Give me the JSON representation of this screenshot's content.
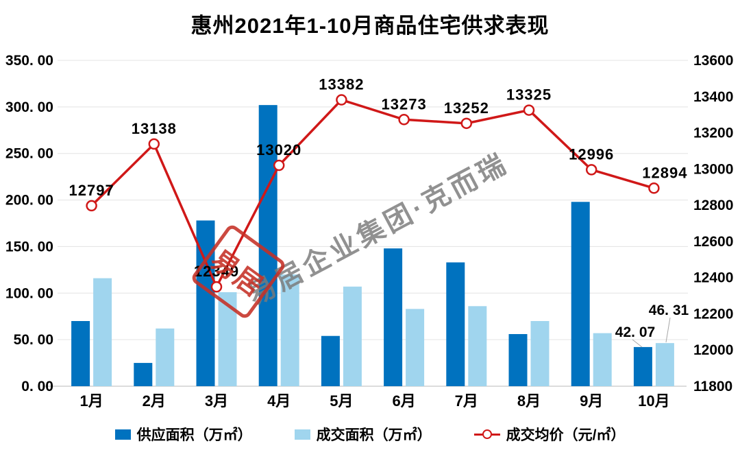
{
  "title": "惠州2021年1-10月商品住宅供求表现",
  "watermark": {
    "diagonal_text": "易居企业集团·克而瑞",
    "stamp_text": "易居"
  },
  "colors": {
    "supply_bar": "#0072bf",
    "deal_bar": "#a0d5ee",
    "price_line": "#d01818",
    "grid_line": "#e3e3e3",
    "axis_line": "#c8c8c8",
    "text": "#000000",
    "leader_line": "#a6a6a6",
    "watermark_gray": "#7a7a7a",
    "stamp_red": "#c63026"
  },
  "chart_data": {
    "type": "bar",
    "subtype": "bar+line combo, dual axis",
    "title": "惠州2021年1-10月商品住宅供求表现",
    "categories": [
      "1月",
      "2月",
      "3月",
      "4月",
      "5月",
      "6月",
      "7月",
      "8月",
      "9月",
      "10月"
    ],
    "series": [
      {
        "name": "供应面积（万㎡）",
        "type": "bar",
        "axis": "left",
        "color": "#0072bf",
        "values": [
          70,
          25,
          178,
          302,
          54,
          148,
          133,
          56,
          198,
          42.07
        ]
      },
      {
        "name": "成交面积（万㎡）",
        "type": "bar",
        "axis": "left",
        "color": "#a0d5ee",
        "values": [
          116,
          62,
          101,
          120,
          107,
          83,
          86,
          70,
          57,
          46.31
        ]
      },
      {
        "name": "成交均价（元/㎡）",
        "type": "line",
        "axis": "right",
        "color": "#d01818",
        "marker": "open-circle",
        "values": [
          12797,
          13138,
          12349,
          13020,
          13382,
          13273,
          13252,
          13325,
          12996,
          12894
        ],
        "point_labels": [
          "12797",
          "13138",
          "12349",
          "13020",
          "13382",
          "13273",
          "13252",
          "13325",
          "12996",
          "12894"
        ]
      }
    ],
    "left_axis": {
      "min": 0,
      "max": 350,
      "step": 50,
      "ticks": [
        "350. 00",
        "300. 00",
        "250. 00",
        "200. 00",
        "150. 00",
        "100. 00",
        "50. 00",
        "0. 00"
      ]
    },
    "right_axis": {
      "min": 11800,
      "max": 13600,
      "step": 200,
      "ticks": [
        "13600",
        "13400",
        "13200",
        "13000",
        "12800",
        "12600",
        "12400",
        "12200",
        "12000",
        "11800"
      ]
    },
    "bar_annotations": [
      {
        "series": "供应面积（万㎡）",
        "category": "10月",
        "label": "42. 07"
      },
      {
        "series": "成交面积（万㎡）",
        "category": "10月",
        "label": "46. 31"
      }
    ],
    "grid": "horizontal gridlines on",
    "legend_position": "bottom"
  },
  "legend": {
    "supply": "供应面积（万㎡）",
    "deal": "成交面积（万㎡）",
    "price": "成交均价（元/㎡）"
  }
}
